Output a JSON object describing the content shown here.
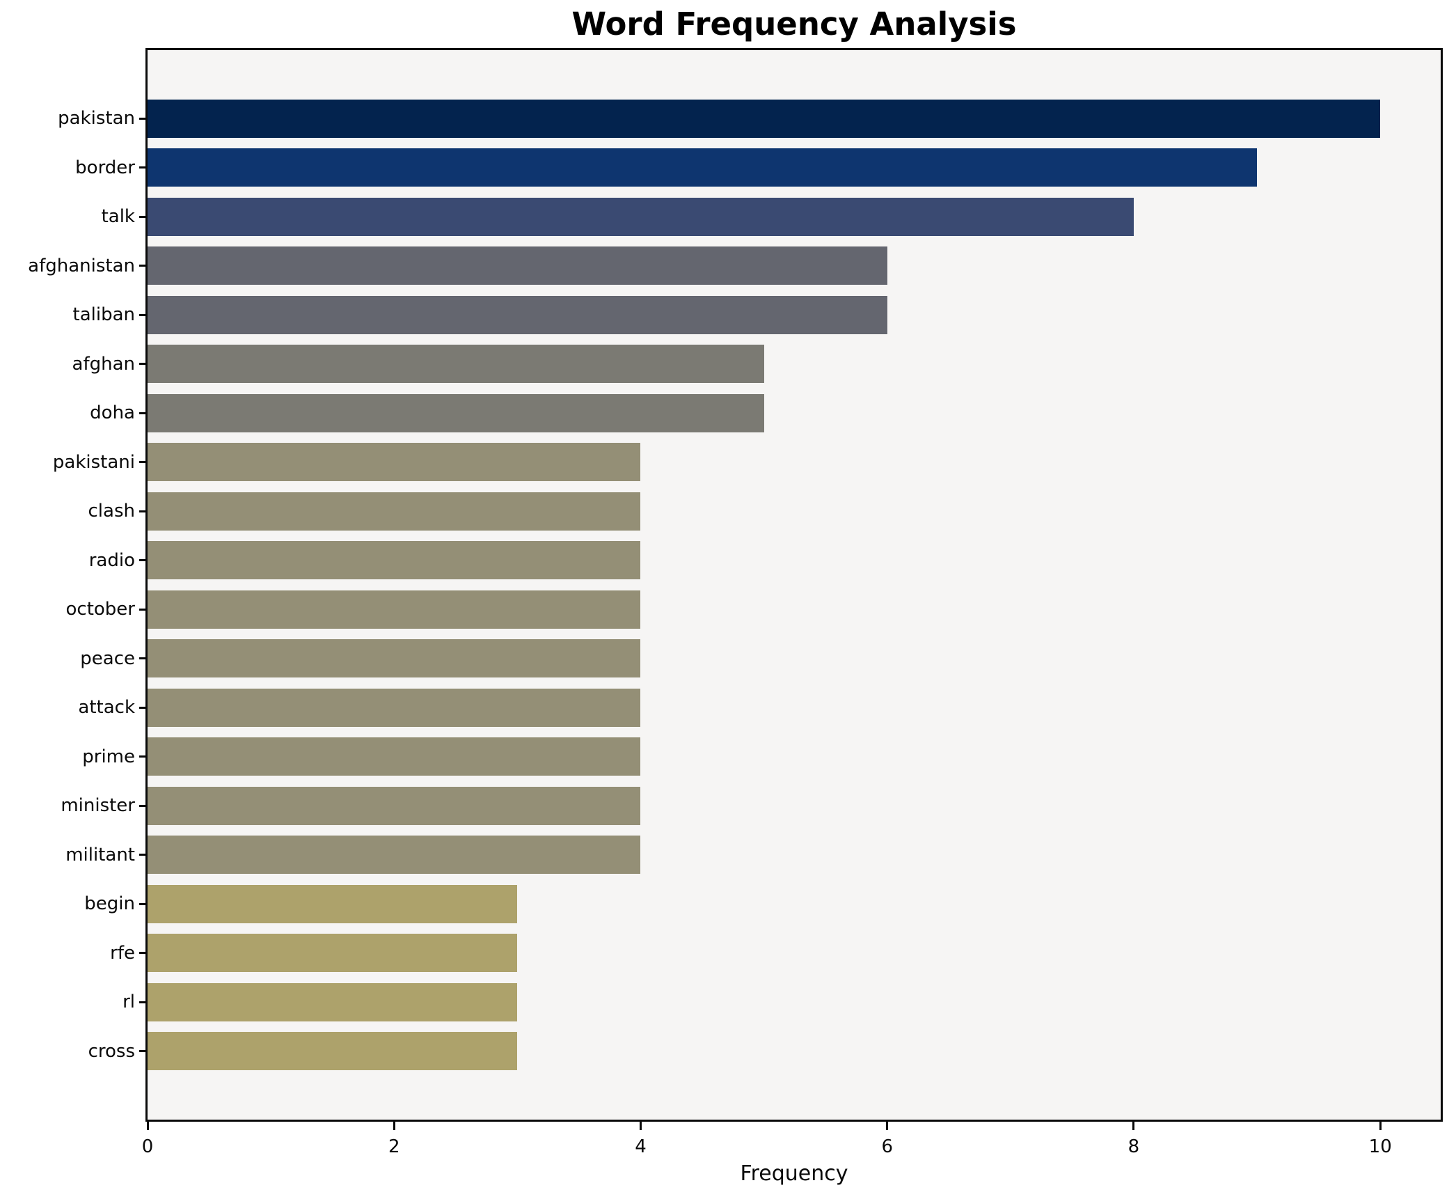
{
  "chart_data": {
    "type": "bar",
    "orientation": "horizontal",
    "title": "Word Frequency Analysis",
    "xlabel": "Frequency",
    "ylabel": "",
    "categories": [
      "pakistan",
      "border",
      "talk",
      "afghanistan",
      "taliban",
      "afghan",
      "doha",
      "pakistani",
      "clash",
      "radio",
      "october",
      "peace",
      "attack",
      "prime",
      "minister",
      "militant",
      "begin",
      "rfe",
      "rl",
      "cross"
    ],
    "values": [
      10,
      9,
      8,
      6,
      6,
      5,
      5,
      4,
      4,
      4,
      4,
      4,
      4,
      4,
      4,
      4,
      3,
      3,
      3,
      3
    ],
    "bar_colors": [
      "#03234e",
      "#0e356f",
      "#3a4a72",
      "#64666f",
      "#64666f",
      "#7b7a73",
      "#7b7a73",
      "#948f76",
      "#948f76",
      "#948f76",
      "#948f76",
      "#948f76",
      "#948f76",
      "#948f76",
      "#948f76",
      "#948f76",
      "#ada26b",
      "#ada26b",
      "#ada26b",
      "#ada26b"
    ],
    "xticks": [
      0,
      2,
      4,
      6,
      8,
      10
    ],
    "xlim": [
      0,
      10.49
    ],
    "grid": false,
    "legend": null,
    "plot_background": "#f6f5f4",
    "figure_background": "#ffffff",
    "spine_color": "#0a0a0a",
    "text_color": "#0a0a0a"
  }
}
